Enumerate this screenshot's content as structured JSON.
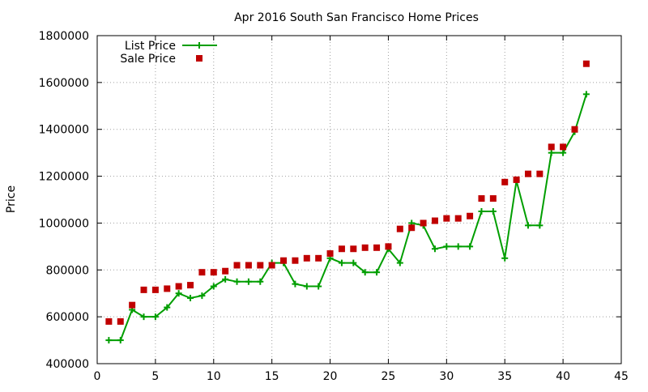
{
  "chart_data": {
    "type": "line",
    "title": "Apr 2016 South San Francisco Home Prices",
    "xlabel": "",
    "ylabel": "Price",
    "xlim": [
      0,
      45
    ],
    "ylim": [
      400000,
      1800000
    ],
    "x_ticks": [
      0,
      5,
      10,
      15,
      20,
      25,
      30,
      35,
      40,
      45
    ],
    "y_ticks": [
      400000,
      600000,
      800000,
      1000000,
      1200000,
      1400000,
      1600000,
      1800000
    ],
    "grid": true,
    "legend_position": "top-left",
    "x": [
      1,
      2,
      3,
      4,
      5,
      6,
      7,
      8,
      9,
      10,
      11,
      12,
      13,
      14,
      15,
      16,
      17,
      18,
      19,
      20,
      21,
      22,
      23,
      24,
      25,
      26,
      27,
      28,
      29,
      30,
      31,
      32,
      33,
      34,
      35,
      36,
      37,
      38,
      39,
      40,
      41,
      42
    ],
    "series": [
      {
        "name": "List Price",
        "style": "line-with-plus-markers",
        "color": "#009e00",
        "values": [
          500000,
          500000,
          630000,
          600000,
          600000,
          640000,
          700000,
          680000,
          690000,
          730000,
          760000,
          750000,
          750000,
          750000,
          830000,
          830000,
          740000,
          730000,
          730000,
          850000,
          830000,
          830000,
          790000,
          790000,
          890000,
          830000,
          1000000,
          990000,
          890000,
          900000,
          900000,
          900000,
          1050000,
          1050000,
          850000,
          1180000,
          990000,
          990000,
          1300000,
          1300000,
          1390000,
          1550000
        ]
      },
      {
        "name": "Sale Price",
        "style": "square-markers",
        "color": "#c00000",
        "values": [
          580000,
          580000,
          650000,
          715000,
          715000,
          720000,
          730000,
          735000,
          790000,
          790000,
          795000,
          820000,
          820000,
          820000,
          820000,
          840000,
          840000,
          850000,
          850000,
          870000,
          890000,
          890000,
          895000,
          895000,
          900000,
          975000,
          980000,
          1000000,
          1010000,
          1020000,
          1020000,
          1030000,
          1105000,
          1105000,
          1175000,
          1185000,
          1210000,
          1210000,
          1325000,
          1325000,
          1400000,
          1680000
        ]
      }
    ]
  }
}
